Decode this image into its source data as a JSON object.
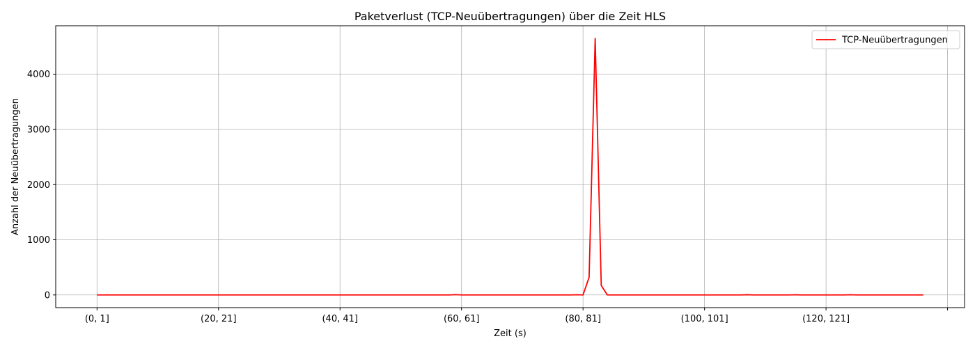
{
  "chart_data": {
    "type": "line",
    "title": "Paketverlust (TCP-Neuübertragungen) über die Zeit HLS",
    "xlabel": "Zeit (s)",
    "ylabel": "Anzahl der Neuübertragungen",
    "x_tick_labels": [
      "(0, 1]",
      "(20, 21]",
      "(40, 41]",
      "(60, 61]",
      "(80, 81]",
      "(100, 101]",
      "(120, 121]",
      ""
    ],
    "x_tick_indices": [
      0,
      20,
      40,
      60,
      80,
      100,
      120,
      140
    ],
    "xlim": [
      -6.8,
      142.8
    ],
    "y_ticks": [
      0,
      1000,
      2000,
      3000,
      4000
    ],
    "ylim": [
      -230,
      4880
    ],
    "grid": true,
    "legend_position": "upper-right",
    "series": [
      {
        "name": "TCP-Neuübertragungen",
        "color": "#ff0000",
        "points": [
          [
            0,
            0
          ],
          [
            58,
            0
          ],
          [
            59,
            5
          ],
          [
            60,
            0
          ],
          [
            78,
            0
          ],
          [
            79,
            3
          ],
          [
            80,
            0
          ],
          [
            81,
            320
          ],
          [
            82,
            4650
          ],
          [
            83,
            170
          ],
          [
            84,
            0
          ],
          [
            106,
            0
          ],
          [
            107,
            4
          ],
          [
            108,
            0
          ],
          [
            114,
            0
          ],
          [
            115,
            3
          ],
          [
            116,
            0
          ],
          [
            123,
            0
          ],
          [
            124,
            3
          ],
          [
            125,
            0
          ],
          [
            136,
            0
          ]
        ]
      }
    ]
  }
}
